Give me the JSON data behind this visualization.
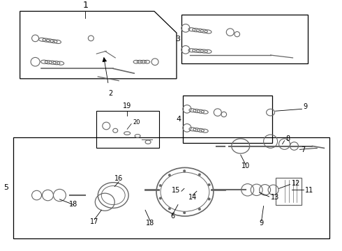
{
  "bg_color": "#ffffff",
  "line_color": "#000000",
  "part_color": "#666666",
  "fig_width": 4.9,
  "fig_height": 3.6,
  "dpi": 100,
  "font_size_label": 7
}
